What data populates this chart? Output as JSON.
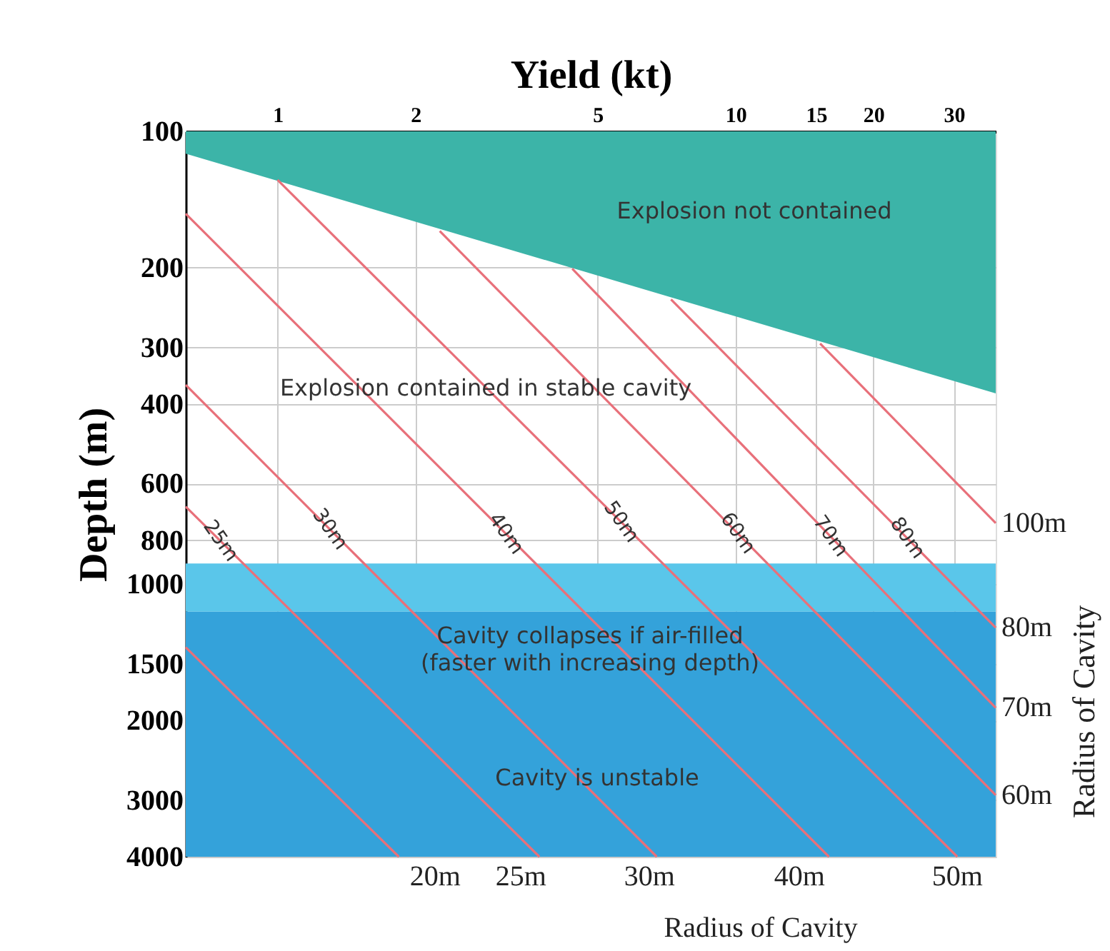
{
  "chart_data": {
    "type": "line",
    "xlabel": "Yield (kt)",
    "ylabel": "Depth (m)",
    "y2label": "Radius of Cavity",
    "xlim": [
      0.63,
      37
    ],
    "ylim": [
      4000,
      100
    ],
    "log": "xy",
    "grid": true,
    "xticks": [
      1,
      2,
      5,
      10,
      15,
      20,
      30
    ],
    "yticks": [
      100,
      200,
      300,
      400,
      600,
      800,
      1000,
      1500,
      2000,
      3000,
      4000
    ],
    "bands": [
      {
        "axis": "y",
        "from": 900,
        "to": 1150,
        "color": "#5ac6ea",
        "label": null
      },
      {
        "axis": "y",
        "from": 1150,
        "to": 4000,
        "color": "#34a2da",
        "label": null
      }
    ],
    "series": [
      {
        "type": "area",
        "color": "#3cb4a8",
        "x": [
          0.63,
          37
        ],
        "values": [
          112,
          379
        ]
      },
      {
        "color": "#e8707a",
        "x": [
          0.63,
          16.0
        ],
        "values": [
          152,
          4000
        ]
      },
      {
        "color": "#e8707a",
        "x": [
          1,
          30.5
        ],
        "values": [
          128,
          4000
        ]
      },
      {
        "color": "#e8707a",
        "x": [
          2.26,
          37
        ],
        "values": [
          166,
          2924
        ]
      },
      {
        "color": "#e8707a",
        "x": [
          4.4,
          37
        ],
        "values": [
          201,
          1875
        ]
      },
      {
        "color": "#e8707a",
        "x": [
          7.23,
          37
        ],
        "values": [
          235,
          1248
        ]
      },
      {
        "color": "#e8707a",
        "x": [
          15.3,
          37
        ],
        "values": [
          294,
          733
        ]
      },
      {
        "color": "#e8707a",
        "x": [
          0.63,
          6.73
        ],
        "values": [
          363,
          4000
        ]
      },
      {
        "color": "#e8707a",
        "x": [
          0.63,
          3.73
        ],
        "values": [
          674,
          4000
        ]
      },
      {
        "color": "#e8707a",
        "x": [
          0.63,
          1.84
        ],
        "values": [
          1379,
          4000
        ]
      }
    ],
    "annotations": [
      "Explosion not contained",
      "Explosion contained in stable cavity",
      "Cavity collapses if air-filled\n(faster with increasing depth)",
      "Cavity is unstable",
      {
        "text": "25m",
        "x": 0.75,
        "y": 803
      },
      {
        "text": "30m",
        "x": 1.3,
        "y": 757
      },
      {
        "text": "40m",
        "x": 3.15,
        "y": 774
      },
      {
        "text": "50m",
        "x": 5.62,
        "y": 729
      },
      {
        "text": "60m",
        "x": 10.1,
        "y": 772
      },
      {
        "text": "70m",
        "x": 16.1,
        "y": 784
      },
      {
        "text": "80m",
        "x": 23.7,
        "y": 791
      },
      {
        "text": "100m",
        "x": 37,
        "y": 733
      },
      {
        "text": "80m",
        "x": 37,
        "y": 1248
      },
      {
        "text": "70m",
        "x": 37,
        "y": 1875
      },
      {
        "text": "60m",
        "x": 37,
        "y": 2924
      },
      {
        "text": "20m",
        "x": 2.21,
        "y": 4000
      },
      {
        "text": "25m",
        "x": 3.4,
        "y": 4000
      },
      {
        "text": "30m",
        "x": 6.49,
        "y": 4000
      },
      {
        "text": "40m",
        "x": 13.8,
        "y": 4000
      },
      {
        "text": "50m",
        "x": 30.5,
        "y": 4000
      },
      "Radius of Cavity"
    ]
  }
}
